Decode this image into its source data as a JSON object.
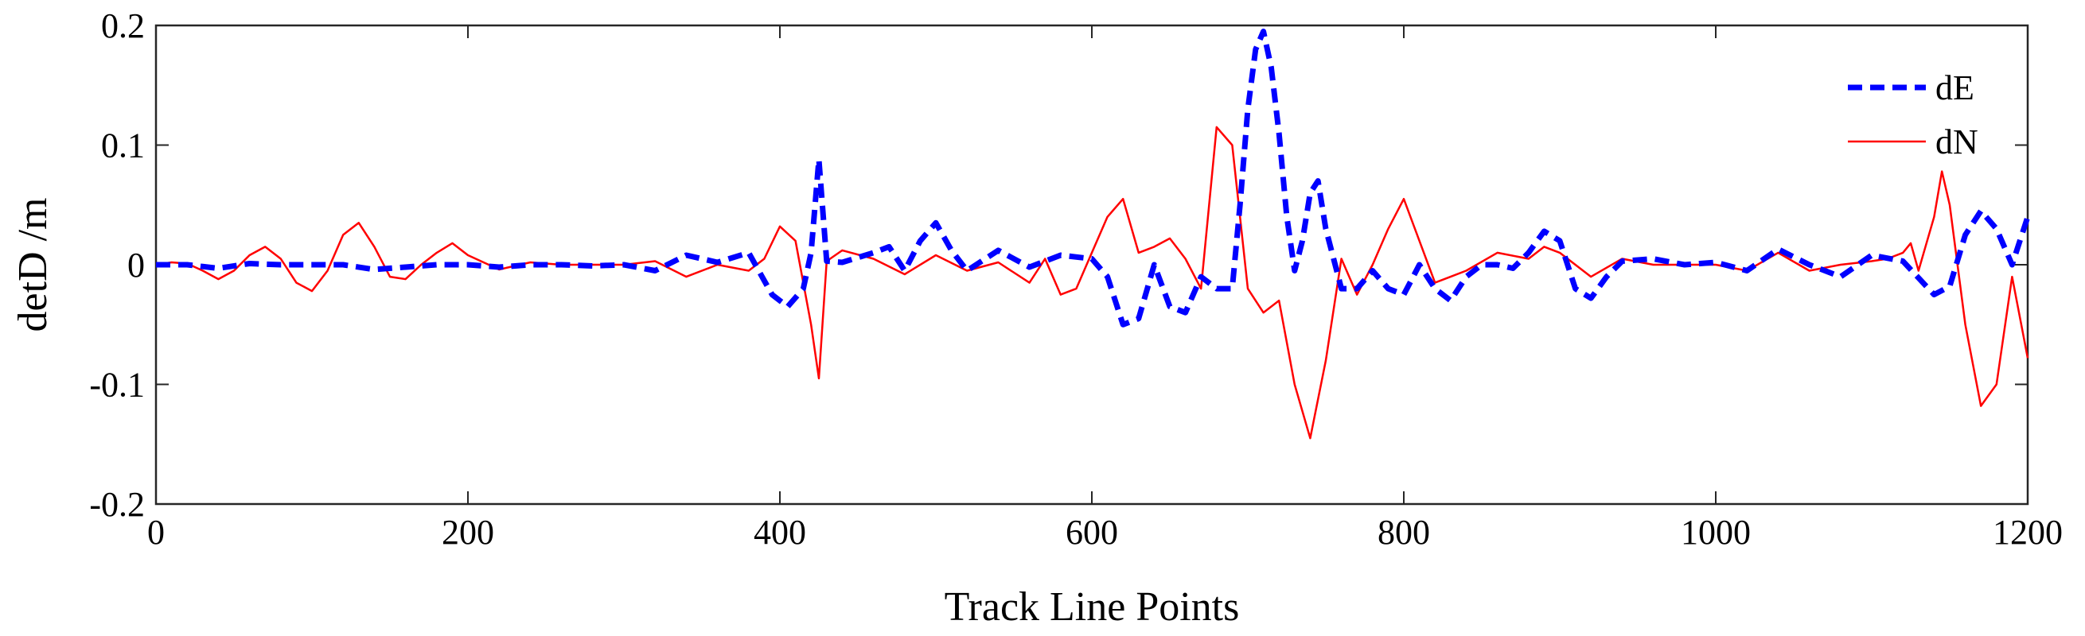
{
  "chart_data": {
    "type": "line",
    "xlabel": "Track Line Points",
    "ylabel": "detD /m",
    "xlim": [
      0,
      1200
    ],
    "ylim": [
      -0.2,
      0.2
    ],
    "xticks": [
      0,
      200,
      400,
      600,
      800,
      1000,
      1200
    ],
    "xtick_labels": [
      "0",
      "200",
      "400",
      "600",
      "800",
      "1000",
      "1200"
    ],
    "yticks": [
      -0.2,
      -0.1,
      0,
      0.1,
      0.2
    ],
    "ytick_labels": [
      "-0.2",
      "-0.1",
      "0",
      "0.1",
      "0.2"
    ],
    "grid": false,
    "legend_position": "top-right",
    "series": [
      {
        "name": "dE",
        "color": "#0000ff",
        "style": "dashed",
        "x": [
          0,
          20,
          40,
          60,
          80,
          100,
          120,
          140,
          160,
          180,
          200,
          220,
          240,
          260,
          280,
          300,
          320,
          340,
          360,
          380,
          395,
          405,
          415,
          420,
          425,
          430,
          440,
          460,
          470,
          480,
          490,
          500,
          510,
          520,
          540,
          560,
          580,
          600,
          610,
          620,
          630,
          640,
          650,
          660,
          670,
          680,
          690,
          695,
          700,
          705,
          710,
          715,
          720,
          725,
          730,
          735,
          740,
          745,
          750,
          760,
          770,
          780,
          790,
          800,
          810,
          820,
          830,
          840,
          850,
          860,
          870,
          880,
          890,
          900,
          910,
          920,
          930,
          940,
          960,
          980,
          1000,
          1020,
          1040,
          1060,
          1080,
          1100,
          1120,
          1140,
          1150,
          1160,
          1170,
          1180,
          1190,
          1200
        ],
        "y": [
          0,
          0,
          -0.003,
          0.001,
          0,
          0,
          0,
          -0.004,
          -0.002,
          0,
          0,
          -0.002,
          0,
          0,
          -0.001,
          0,
          -0.005,
          0.008,
          0.002,
          0.01,
          -0.025,
          -0.035,
          -0.02,
          0.01,
          0.088,
          0.003,
          0.002,
          0.01,
          0.015,
          -0.005,
          0.02,
          0.035,
          0.012,
          -0.005,
          0.012,
          -0.002,
          0.008,
          0.005,
          -0.01,
          -0.05,
          -0.045,
          0,
          -0.035,
          -0.04,
          -0.01,
          -0.02,
          -0.02,
          0.05,
          0.13,
          0.18,
          0.195,
          0.165,
          0.11,
          0.04,
          -0.005,
          0.02,
          0.06,
          0.07,
          0.03,
          -0.02,
          -0.02,
          -0.005,
          -0.02,
          -0.025,
          0,
          -0.02,
          -0.03,
          -0.01,
          0,
          0,
          -0.003,
          0.01,
          0.028,
          0.02,
          -0.02,
          -0.028,
          -0.01,
          0.003,
          0.005,
          0,
          0.002,
          -0.005,
          0.013,
          0,
          -0.01,
          0.008,
          0.003,
          -0.025,
          -0.018,
          0.025,
          0.045,
          0.03,
          0,
          0.04
        ]
      },
      {
        "name": "dN",
        "color": "#ff0000",
        "style": "solid",
        "x": [
          0,
          10,
          20,
          30,
          40,
          50,
          60,
          70,
          80,
          90,
          100,
          110,
          120,
          130,
          140,
          150,
          160,
          170,
          180,
          190,
          200,
          220,
          240,
          260,
          280,
          300,
          320,
          340,
          360,
          380,
          390,
          400,
          410,
          420,
          425,
          430,
          440,
          460,
          480,
          500,
          520,
          540,
          560,
          570,
          580,
          590,
          600,
          610,
          620,
          630,
          640,
          650,
          660,
          670,
          680,
          690,
          700,
          710,
          720,
          730,
          740,
          750,
          760,
          770,
          780,
          790,
          800,
          810,
          820,
          830,
          840,
          860,
          880,
          890,
          900,
          920,
          940,
          960,
          980,
          1000,
          1020,
          1040,
          1060,
          1080,
          1100,
          1110,
          1120,
          1125,
          1130,
          1140,
          1145,
          1150,
          1160,
          1170,
          1180,
          1190,
          1200
        ],
        "y": [
          0,
          0.002,
          0.001,
          -0.005,
          -0.012,
          -0.005,
          0.008,
          0.015,
          0.005,
          -0.015,
          -0.022,
          -0.005,
          0.025,
          0.035,
          0.015,
          -0.01,
          -0.012,
          0,
          0.01,
          0.018,
          0.008,
          -0.004,
          0.002,
          0,
          0,
          0,
          0.003,
          -0.01,
          0,
          -0.005,
          0.005,
          0.032,
          0.02,
          -0.05,
          -0.095,
          0.003,
          0.012,
          0.005,
          -0.008,
          0.008,
          -0.005,
          0.002,
          -0.015,
          0.005,
          -0.025,
          -0.02,
          0.01,
          0.04,
          0.055,
          0.01,
          0.015,
          0.022,
          0.005,
          -0.02,
          0.115,
          0.1,
          -0.02,
          -0.04,
          -0.03,
          -0.1,
          -0.145,
          -0.08,
          0.005,
          -0.025,
          0,
          0.03,
          0.055,
          0.02,
          -0.015,
          -0.01,
          -0.005,
          0.01,
          0.005,
          0.015,
          0.01,
          -0.01,
          0.005,
          0,
          0,
          0,
          -0.005,
          0.01,
          -0.005,
          0,
          0.003,
          0.005,
          0.01,
          0.018,
          -0.005,
          0.04,
          0.078,
          0.05,
          -0.05,
          -0.118,
          -0.1,
          -0.01,
          -0.078
        ]
      }
    ]
  }
}
